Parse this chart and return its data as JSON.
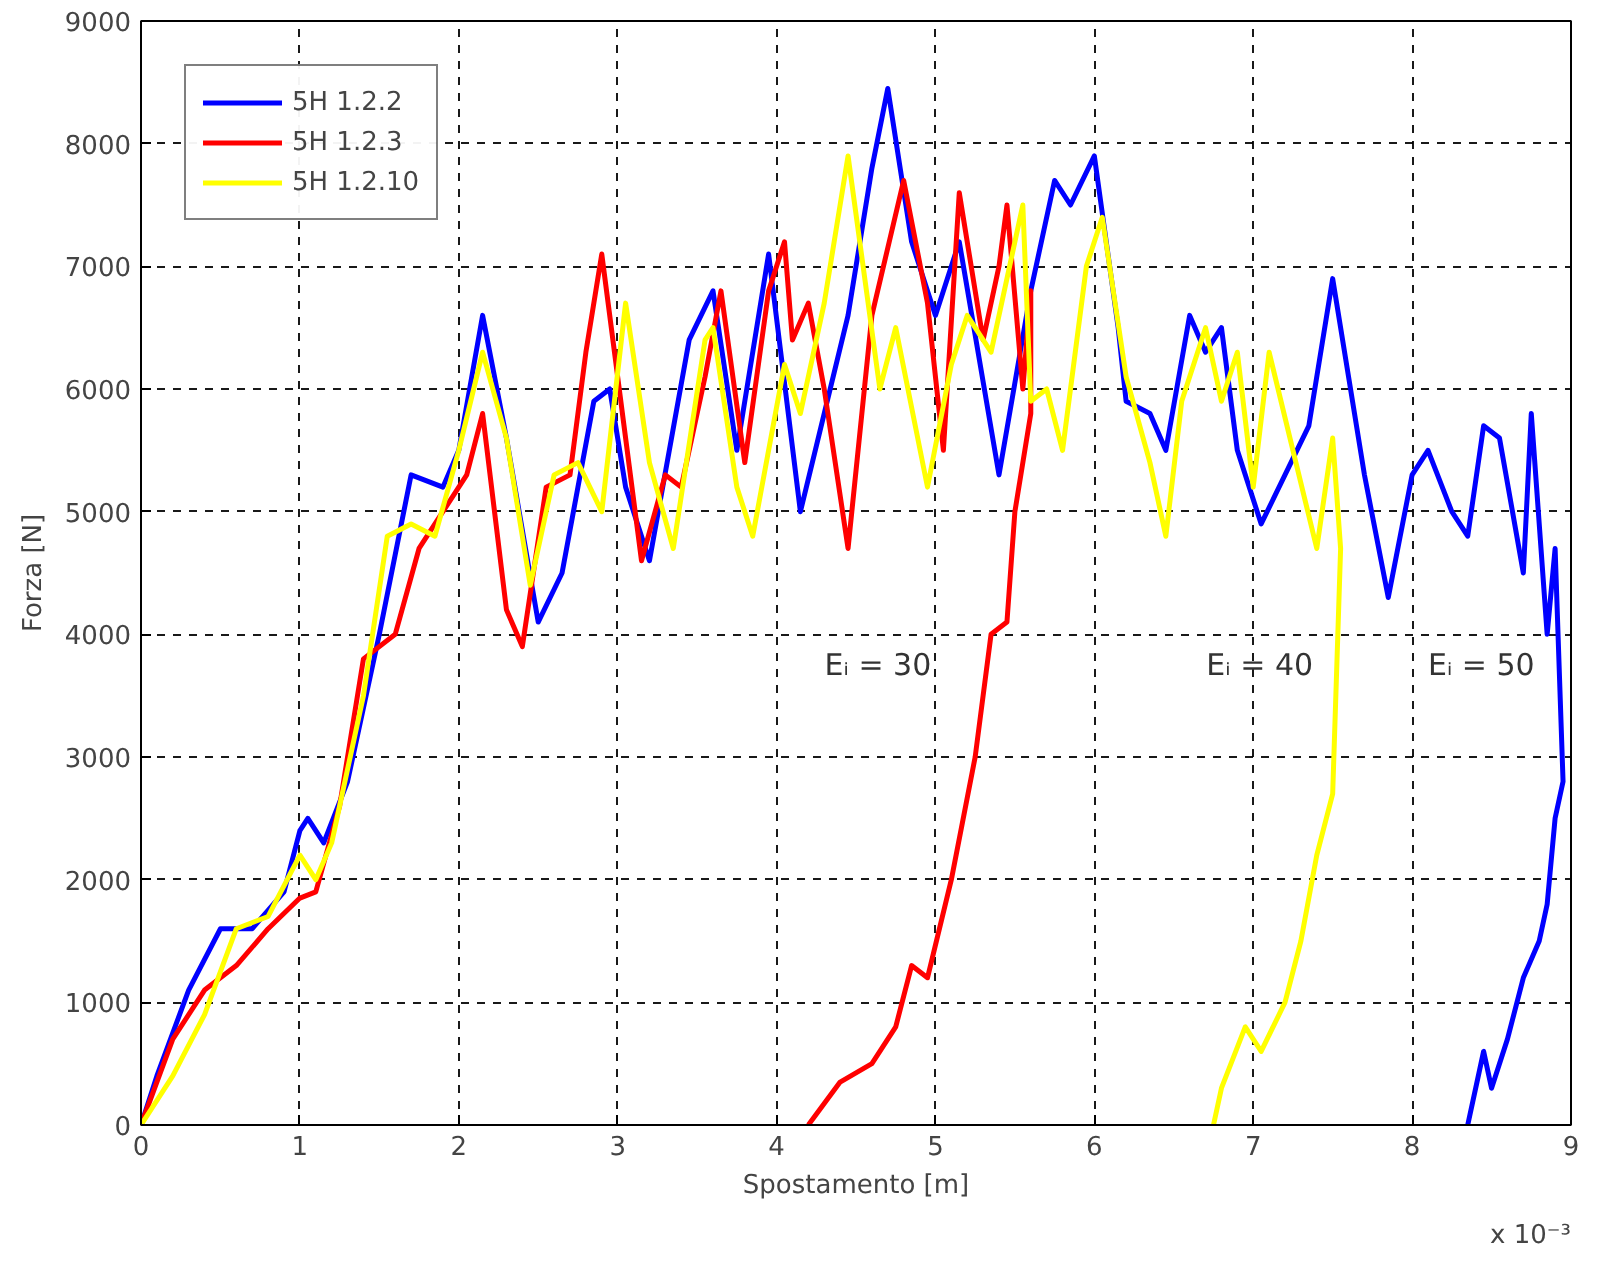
{
  "chart_data": {
    "type": "line",
    "xlabel": "Spostamento [m]",
    "ylabel": "Forza [N]",
    "xlim": [
      0,
      9
    ],
    "ylim": [
      0,
      9000
    ],
    "xticks": [
      0,
      1,
      2,
      3,
      4,
      5,
      6,
      7,
      8,
      9
    ],
    "yticks": [
      0,
      1000,
      2000,
      3000,
      4000,
      5000,
      6000,
      7000,
      8000,
      9000
    ],
    "grid": true,
    "legend": "top left",
    "line_style": "solid",
    "marker": "none",
    "annotations": [
      "Eᵢ = 30",
      "Eᵢ = 40",
      "Eᵢ = 50",
      "x 10⁻³"
    ],
    "series": [
      {
        "name": "5H 1.2.2",
        "color": "#0000ff",
        "x": [
          0,
          0.1,
          0.3,
          0.5,
          0.7,
          0.9,
          1.0,
          1.05,
          1.15,
          1.3,
          1.5,
          1.7,
          1.9,
          2.0,
          2.15,
          2.3,
          2.5,
          2.65,
          2.85,
          2.95,
          3.05,
          3.2,
          3.45,
          3.6,
          3.75,
          3.95,
          4.15,
          4.45,
          4.6,
          4.7,
          4.85,
          5.0,
          5.15,
          5.4,
          5.6,
          5.75,
          5.85,
          6.0,
          6.15,
          6.2,
          6.35,
          6.45,
          6.6,
          6.7,
          6.8,
          6.9,
          7.05,
          7.2,
          7.35,
          7.5,
          7.7,
          7.85,
          8.0,
          8.1,
          8.25,
          8.35,
          8.45,
          8.55,
          8.7,
          8.75,
          8.85,
          8.9,
          8.95,
          8.9,
          8.85,
          8.8,
          8.7,
          8.6,
          8.5,
          8.45,
          8.35
        ],
        "values": [
          0,
          400,
          1100,
          1600,
          1600,
          1900,
          2400,
          2500,
          2300,
          2800,
          4000,
          5300,
          5200,
          5500,
          6600,
          5600,
          4100,
          4500,
          5900,
          6000,
          5200,
          4600,
          6400,
          6800,
          5500,
          7100,
          5000,
          6600,
          7800,
          8450,
          7200,
          6600,
          7200,
          5300,
          6800,
          7700,
          7500,
          7900,
          6500,
          5900,
          5800,
          5500,
          6600,
          6300,
          6500,
          5500,
          4900,
          5300,
          5700,
          6900,
          5300,
          4300,
          5300,
          5500,
          5000,
          4800,
          5700,
          5600,
          4500,
          5800,
          4000,
          4700,
          2800,
          2500,
          1800,
          1500,
          1200,
          700,
          300,
          600,
          0
        ]
      },
      {
        "name": "5H 1.2.3",
        "color": "#ff0000",
        "x": [
          0,
          0.2,
          0.4,
          0.6,
          0.8,
          1.0,
          1.1,
          1.25,
          1.4,
          1.6,
          1.75,
          1.9,
          2.05,
          2.15,
          2.3,
          2.4,
          2.55,
          2.7,
          2.8,
          2.9,
          3.05,
          3.15,
          3.3,
          3.4,
          3.55,
          3.65,
          3.8,
          3.95,
          4.05,
          4.1,
          4.2,
          4.3,
          4.45,
          4.6,
          4.8,
          4.95,
          5.05,
          5.15,
          5.3,
          5.4,
          5.45,
          5.55,
          5.6,
          5.6,
          5.5,
          5.45,
          5.35,
          5.25,
          5.1,
          4.95,
          4.85,
          4.75,
          4.6,
          4.4,
          4.2
        ],
        "values": [
          0,
          700,
          1100,
          1300,
          1600,
          1850,
          1900,
          2600,
          3800,
          4000,
          4700,
          5000,
          5300,
          5800,
          4200,
          3900,
          5200,
          5300,
          6300,
          7100,
          5600,
          4600,
          5300,
          5200,
          6100,
          6800,
          5400,
          6800,
          7200,
          6400,
          6700,
          6000,
          4700,
          6600,
          7700,
          6700,
          5500,
          7600,
          6400,
          7000,
          7500,
          6000,
          6800,
          5800,
          5000,
          4100,
          4000,
          3000,
          2000,
          1200,
          1300,
          800,
          500,
          350,
          0
        ]
      },
      {
        "name": "5H 1.2.10",
        "color": "#ffff00",
        "x": [
          0,
          0.2,
          0.4,
          0.6,
          0.8,
          1.0,
          1.1,
          1.2,
          1.4,
          1.55,
          1.7,
          1.85,
          2.0,
          2.15,
          2.3,
          2.45,
          2.6,
          2.75,
          2.9,
          3.05,
          3.2,
          3.35,
          3.55,
          3.6,
          3.75,
          3.85,
          4.05,
          4.15,
          4.3,
          4.45,
          4.65,
          4.75,
          4.95,
          5.1,
          5.2,
          5.35,
          5.55,
          5.6,
          5.7,
          5.8,
          5.95,
          6.05,
          6.2,
          6.35,
          6.45,
          6.55,
          6.7,
          6.8,
          6.9,
          7.0,
          7.1,
          7.25,
          7.4,
          7.5,
          7.55,
          7.5,
          7.4,
          7.3,
          7.2,
          7.05,
          6.95,
          6.8,
          6.75
        ],
        "values": [
          0,
          400,
          900,
          1600,
          1700,
          2200,
          2000,
          2300,
          3500,
          4800,
          4900,
          4800,
          5500,
          6300,
          5600,
          4400,
          5300,
          5400,
          5000,
          6700,
          5400,
          4700,
          6400,
          6500,
          5200,
          4800,
          6200,
          5800,
          6700,
          7900,
          6000,
          6500,
          5200,
          6200,
          6600,
          6300,
          7500,
          5900,
          6000,
          5500,
          7000,
          7400,
          6100,
          5400,
          4800,
          5900,
          6500,
          5900,
          6300,
          5200,
          6300,
          5500,
          4700,
          5600,
          4700,
          2700,
          2200,
          1500,
          1000,
          600,
          800,
          300,
          0
        ]
      }
    ]
  }
}
